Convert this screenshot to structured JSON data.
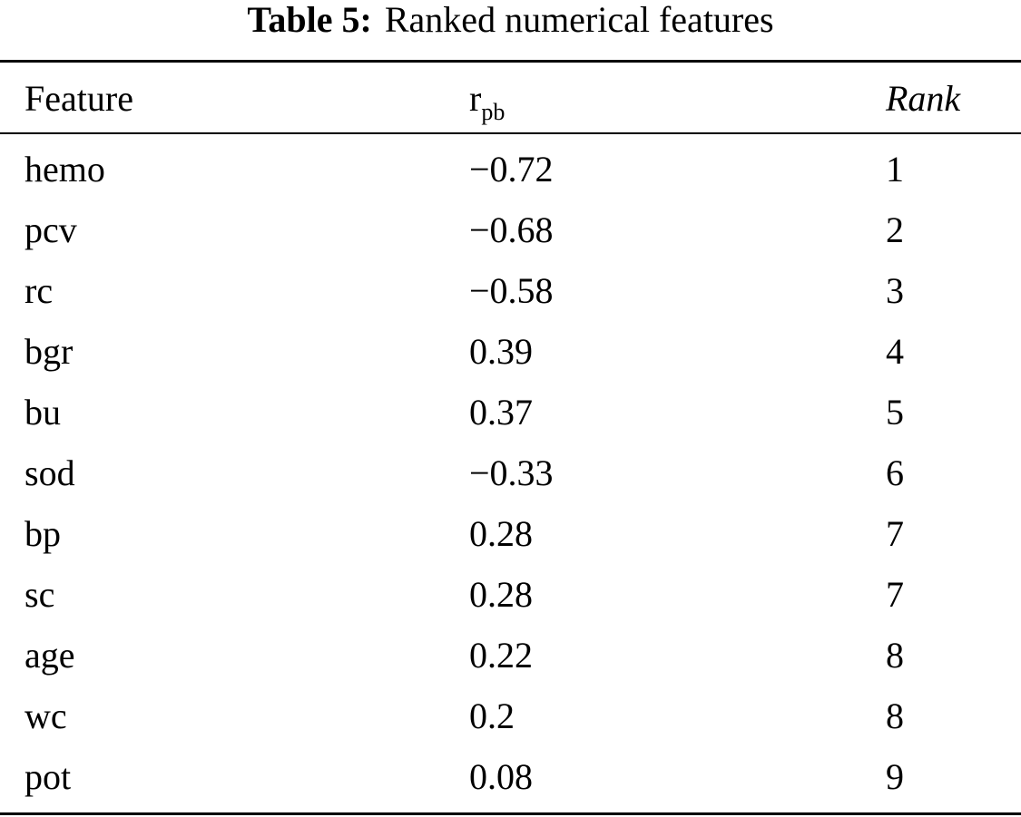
{
  "caption": {
    "label": "Table 5:",
    "text": "Ranked numerical features"
  },
  "table": {
    "headers": {
      "feature": "Feature",
      "r_main": "r",
      "r_sub": "pb",
      "rank": "Rank"
    },
    "rows": [
      {
        "feature": "hemo",
        "r": "−0.72",
        "rank": "1"
      },
      {
        "feature": "pcv",
        "r": "−0.68",
        "rank": "2"
      },
      {
        "feature": "rc",
        "r": "−0.58",
        "rank": "3"
      },
      {
        "feature": "bgr",
        "r": "0.39",
        "rank": "4"
      },
      {
        "feature": "bu",
        "r": "0.37",
        "rank": "5"
      },
      {
        "feature": "sod",
        "r": "−0.33",
        "rank": "6"
      },
      {
        "feature": "bp",
        "r": "0.28",
        "rank": "7"
      },
      {
        "feature": "sc",
        "r": "0.28",
        "rank": "7"
      },
      {
        "feature": "age",
        "r": "0.22",
        "rank": "8"
      },
      {
        "feature": "wc",
        "r": "0.2",
        "rank": "8"
      },
      {
        "feature": "pot",
        "r": "0.08",
        "rank": "9"
      }
    ]
  }
}
